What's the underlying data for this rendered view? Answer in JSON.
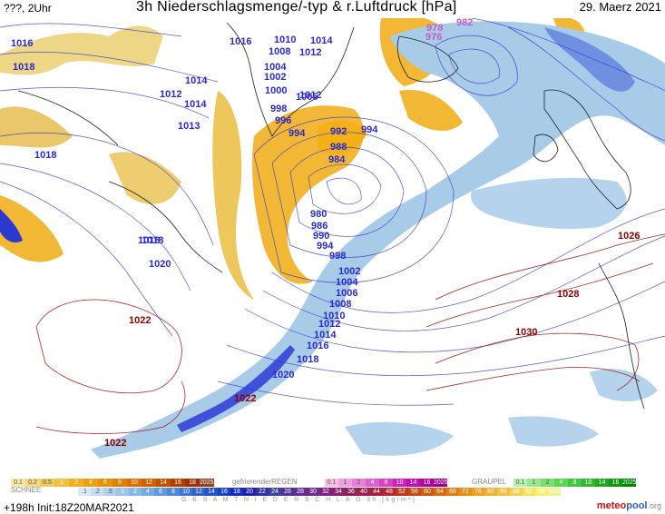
{
  "header": {
    "left_label": "???, 2Uhr",
    "title": "3h Niederschlagsmenge/-typ & r.Luftdruck [hPa]",
    "date": "29. Maerz 2021"
  },
  "isobars_blue": [
    "1016",
    "1018",
    "1016",
    "1014",
    "1012",
    "1018",
    "1012",
    "1014",
    "1013",
    "1018",
    "1010",
    "1008",
    "1004",
    "1002",
    "1000",
    "998",
    "996",
    "994",
    "1014",
    "1012",
    "1006",
    "992",
    "994",
    "988",
    "984",
    "980",
    "986",
    "990",
    "994",
    "998",
    "1002",
    "1004",
    "1006",
    "1008",
    "1010",
    "1012",
    "1014",
    "1016",
    "1018",
    "1020",
    "1018",
    "1020"
  ],
  "isobars_red": [
    "1022",
    "1022",
    "1022",
    "1026",
    "1028",
    "1030"
  ],
  "isobars_magenta": [
    "978",
    "976",
    "982"
  ],
  "legend": {
    "rain_values": [
      "0.1",
      "0.2",
      "0.5",
      "1",
      "2",
      "4",
      "6",
      "8",
      "10",
      "12",
      "14",
      "16",
      "18",
      "2025+"
    ],
    "frz_label": "gefrierenderREGEN",
    "frz_values": [
      "0.1",
      "1",
      "2",
      "4",
      "8",
      "10",
      "14",
      "16",
      "2025+"
    ],
    "graupel_label": "GRAUPEL",
    "graupel_values": [
      "0.1",
      "1",
      "2",
      "4",
      "8",
      "10",
      "14",
      "16",
      "2025+"
    ],
    "snow_label": "SCHNEE",
    "snow_values": [
      ".1",
      ".2",
      ".5",
      "1",
      "2",
      "4",
      "6",
      "8",
      "10",
      "12",
      "14",
      "16",
      "18",
      "20",
      "22",
      "24",
      "26",
      "28",
      "30",
      "32",
      "34",
      "36",
      "40",
      "44",
      "48",
      "52",
      "56",
      "60",
      "64",
      "68",
      "72",
      "76",
      "80",
      "84",
      "88",
      "92",
      "96",
      "100"
    ],
    "total_label": "G E S A M T N I E D E R S C H L A G   3h   [kg/m²]"
  },
  "footer": {
    "run_info": "+198h  Init:18Z20MAR2021",
    "logo_a": "meteo",
    "logo_b": "pool",
    "logo_c": ".org"
  },
  "colors": {
    "rain": "#f0b020",
    "snow": "#9fc5e8",
    "snow_heavy": "#3040d0",
    "isobar_blue": "#3a3ad0",
    "isobar_red": "#a00000",
    "land_yellow": "#e8d890"
  }
}
